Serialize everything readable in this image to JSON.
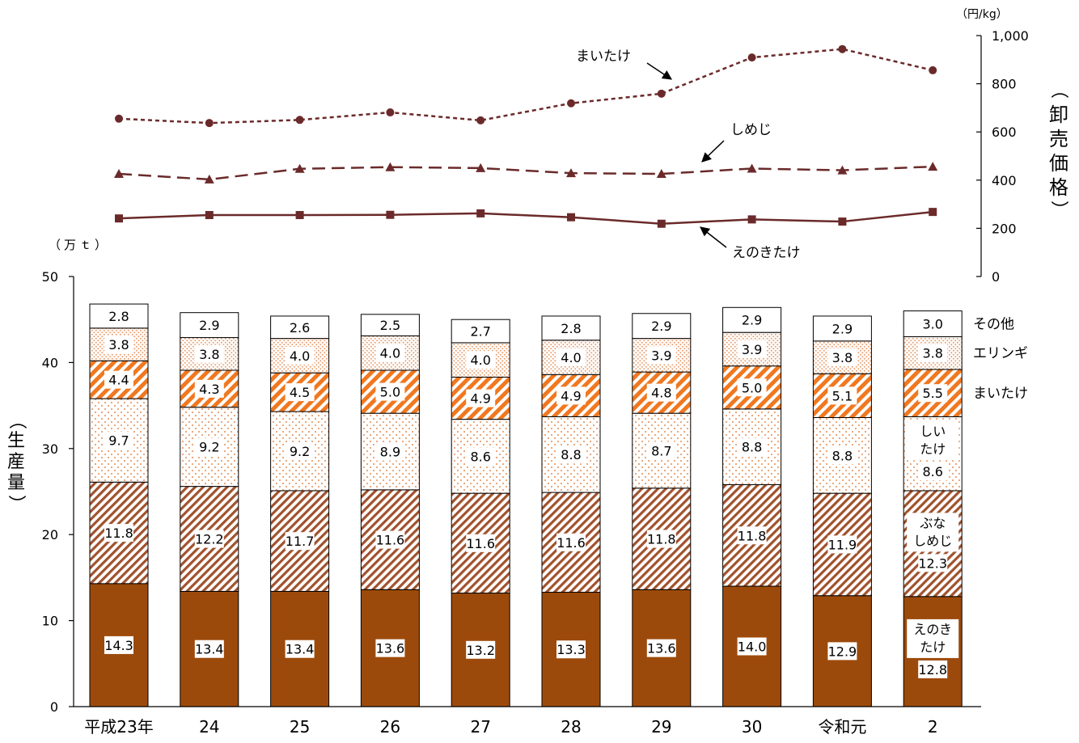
{
  "chart_data": [
    {
      "type": "bar",
      "stacked": true,
      "categories": [
        "平成23年",
        "24",
        "25",
        "26",
        "27",
        "28",
        "29",
        "30",
        "令和元",
        "2"
      ],
      "ylabel": "生産量",
      "yunit": "（万ｔ）",
      "ylim": [
        0,
        50
      ],
      "yticks": [
        "0",
        "10",
        "20",
        "30",
        "40",
        "50"
      ],
      "series": [
        {
          "name": "えのきたけ",
          "label_lines": [
            "えのき",
            "たけ"
          ],
          "color": "#9c4a0b",
          "pattern": "solid",
          "values": [
            14.3,
            13.4,
            13.4,
            13.6,
            13.2,
            13.3,
            13.6,
            14.0,
            12.9,
            12.8
          ],
          "labels": [
            "14.3",
            "13.4",
            "13.4",
            "13.6",
            "13.2",
            "13.3",
            "13.6",
            "14.0",
            "12.9",
            "12.8"
          ]
        },
        {
          "name": "ぶなしめじ",
          "label_lines": [
            "ぶな",
            "しめじ"
          ],
          "color": "#a0522d",
          "pattern": "diagonal",
          "values": [
            11.8,
            12.2,
            11.7,
            11.6,
            11.6,
            11.6,
            11.8,
            11.8,
            11.9,
            12.3
          ],
          "labels": [
            "11.8",
            "12.2",
            "11.7",
            "11.6",
            "11.6",
            "11.6",
            "11.8",
            "11.8",
            "11.9",
            "12.3"
          ]
        },
        {
          "name": "しいたけ",
          "label_lines": [
            "しい",
            "たけ"
          ],
          "color": "#e8a070",
          "pattern": "dots-sparse",
          "values": [
            9.7,
            9.2,
            9.2,
            8.9,
            8.6,
            8.8,
            8.7,
            8.8,
            8.8,
            8.6
          ],
          "labels": [
            "9.7",
            "9.2",
            "9.2",
            "8.9",
            "8.6",
            "8.8",
            "8.7",
            "8.8",
            "8.8",
            "8.6"
          ]
        },
        {
          "name": "まいたけ",
          "color": "#f07820",
          "pattern": "diagonal-wide",
          "values": [
            4.4,
            4.3,
            4.5,
            5.0,
            4.9,
            4.9,
            4.8,
            5.0,
            5.1,
            5.5
          ],
          "labels": [
            "4.4",
            "4.3",
            "4.5",
            "5.0",
            "4.9",
            "4.9",
            "4.8",
            "5.0",
            "5.1",
            "5.5"
          ]
        },
        {
          "name": "エリンギ",
          "color": "#e8a070",
          "pattern": "dots-dense",
          "values": [
            3.8,
            3.8,
            4.0,
            4.0,
            4.0,
            4.0,
            3.9,
            3.9,
            3.8,
            3.8
          ],
          "labels": [
            "3.8",
            "3.8",
            "4.0",
            "4.0",
            "4.0",
            "4.0",
            "3.9",
            "3.9",
            "3.8",
            "3.8"
          ]
        },
        {
          "name": "その他",
          "color": "#ffffff",
          "pattern": "none",
          "values": [
            2.8,
            2.9,
            2.6,
            2.5,
            2.7,
            2.8,
            2.9,
            2.9,
            2.9,
            3.0
          ],
          "labels": [
            "2.8",
            "2.9",
            "2.6",
            "2.5",
            "2.7",
            "2.8",
            "2.9",
            "2.9",
            "2.9",
            "3.0"
          ]
        }
      ]
    },
    {
      "type": "line",
      "categories": [
        "平成23年",
        "24",
        "25",
        "26",
        "27",
        "28",
        "29",
        "30",
        "令和元",
        "2"
      ],
      "ylabel": "卸売価格",
      "yunit": "（円/kg）",
      "ylim": [
        0,
        1000
      ],
      "yticks": [
        "0",
        "200",
        "400",
        "600",
        "800",
        "1,000"
      ],
      "color": "#6b2a2a",
      "series": [
        {
          "name": "まいたけ",
          "marker": "circle",
          "dash": "short",
          "values": [
            655,
            637,
            650,
            681,
            648,
            719,
            759,
            909,
            944,
            856
          ]
        },
        {
          "name": "しめじ",
          "marker": "triangle",
          "dash": "long",
          "values": [
            426,
            403,
            447,
            454,
            450,
            429,
            426,
            448,
            441,
            456
          ]
        },
        {
          "name": "えのきたけ",
          "marker": "square",
          "dash": "solid",
          "values": [
            241,
            255,
            255,
            256,
            262,
            246,
            219,
            237,
            228,
            268
          ]
        }
      ]
    }
  ]
}
